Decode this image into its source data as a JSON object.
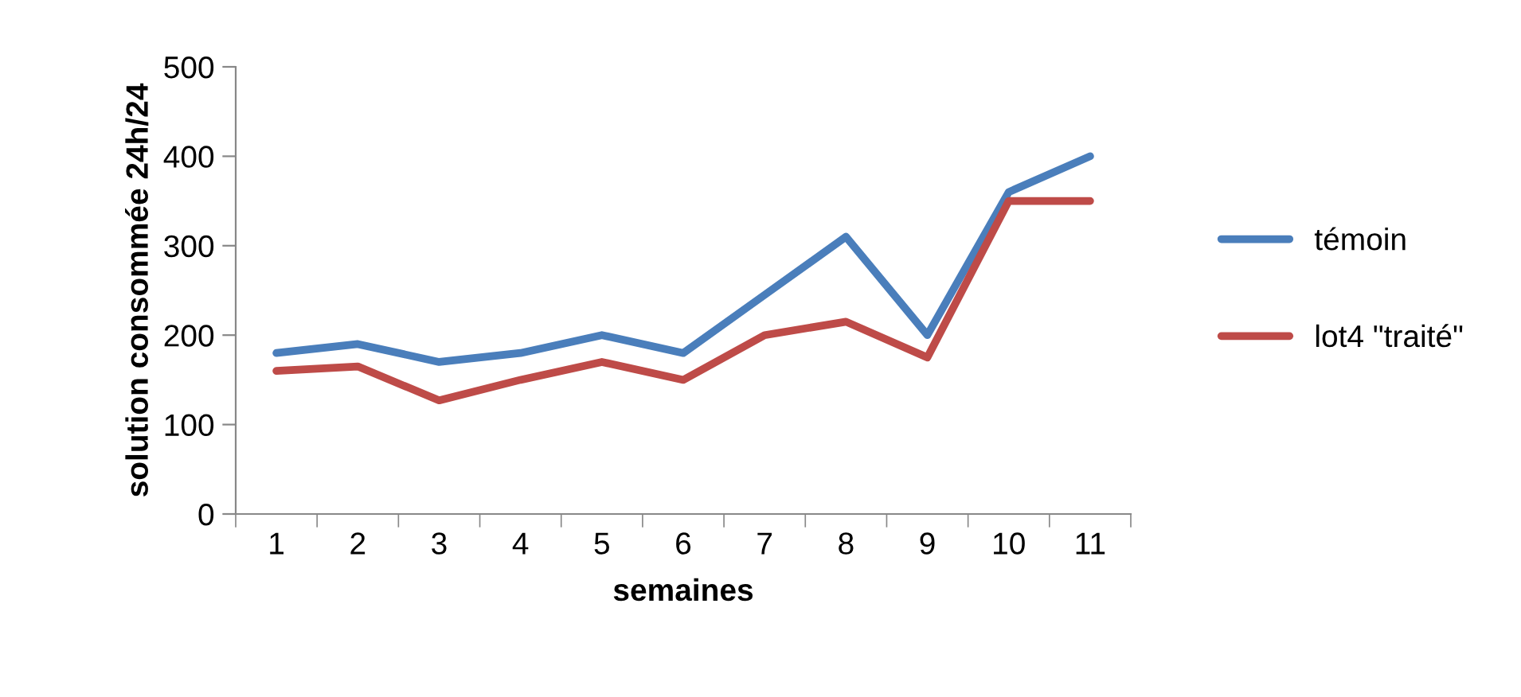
{
  "chart_data": {
    "type": "line",
    "xlabel": "semaines",
    "ylabel": "solution consommée 24h/24",
    "categories": [
      "1",
      "2",
      "3",
      "4",
      "5",
      "6",
      "7",
      "8",
      "9",
      "10",
      "11"
    ],
    "series": [
      {
        "name": "témoin",
        "color": "#4a7ebb",
        "values": [
          180,
          190,
          170,
          180,
          200,
          180,
          245,
          310,
          200,
          360,
          400
        ]
      },
      {
        "name": "lot4 \"traité\"",
        "color": "#be4b48",
        "values": [
          160,
          165,
          127,
          150,
          170,
          150,
          200,
          215,
          175,
          350,
          350
        ]
      }
    ],
    "ylim": [
      0,
      500
    ],
    "yticks": [
      0,
      100,
      200,
      300,
      400,
      500
    ],
    "grid": false,
    "legend": "right",
    "marker": "none",
    "line_style": "solid"
  }
}
